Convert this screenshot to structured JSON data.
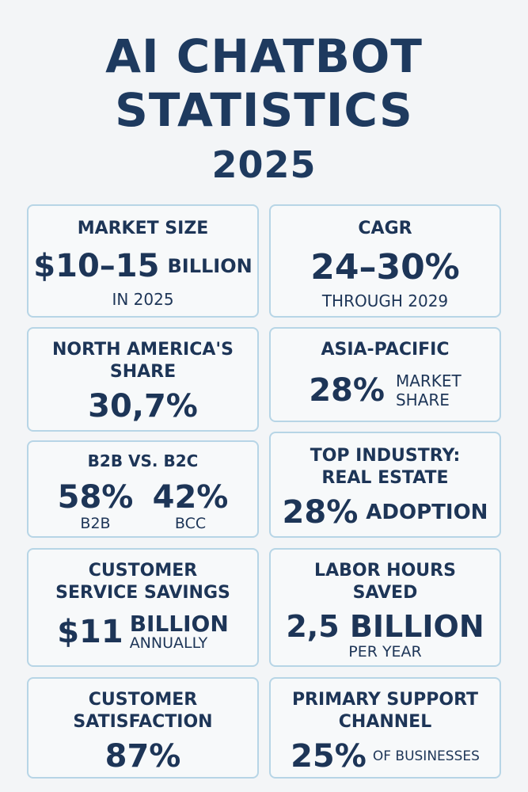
{
  "title": {
    "line1": "AI CHATBOT",
    "line2": "STATISTICS",
    "line3": "2025"
  },
  "cards": {
    "market_size": {
      "label": "MARKET SIZE",
      "value": "$10–15",
      "unit": "BILLION",
      "sub": "IN 2025"
    },
    "cagr": {
      "label": "CAGR",
      "value": "24–30%",
      "sub": "THROUGH 2029"
    },
    "north_america": {
      "label_line1": "NORTH AMERICA'S",
      "label_line2": "SHARE",
      "value": "30,7%"
    },
    "asia_pacific": {
      "label": "ASIA-PACIFIC",
      "value": "28%",
      "unit_line1": "MARKET",
      "unit_line2": "SHARE"
    },
    "b2b_b2c": {
      "label": "B2B VS. B2C",
      "left_value": "58%",
      "left_sub": "B2B",
      "right_value": "42%",
      "right_sub": "BCC"
    },
    "top_industry": {
      "label_line1": "TOP INDUSTRY:",
      "label_line2": "REAL ESTATE",
      "value": "28%",
      "unit": "ADOPTION"
    },
    "service_savings": {
      "label_line1": "CUSTOMER",
      "label_line2": "SERVICE SAVINGS",
      "value": "$11",
      "unit_line1": "BILLION",
      "unit_line2": "ANNUALLY"
    },
    "labor_hours": {
      "label_line1": "LABOR HOURS",
      "label_line2": "SAVED",
      "value": "2,5 BILLION",
      "sub": "PER YEAR"
    },
    "satisfaction": {
      "label_line1": "CUSTOMER",
      "label_line2": "SATISFACTION",
      "value": "87%"
    },
    "support_channel": {
      "label_line1": "PRIMARY SUPPORT",
      "label_line2": "CHANNEL",
      "value": "25%",
      "unit": "OF BUSINESSES"
    }
  },
  "colors": {
    "background": "#f3f5f7",
    "text": "#1d3557",
    "card_border": "#b7d5e6"
  }
}
